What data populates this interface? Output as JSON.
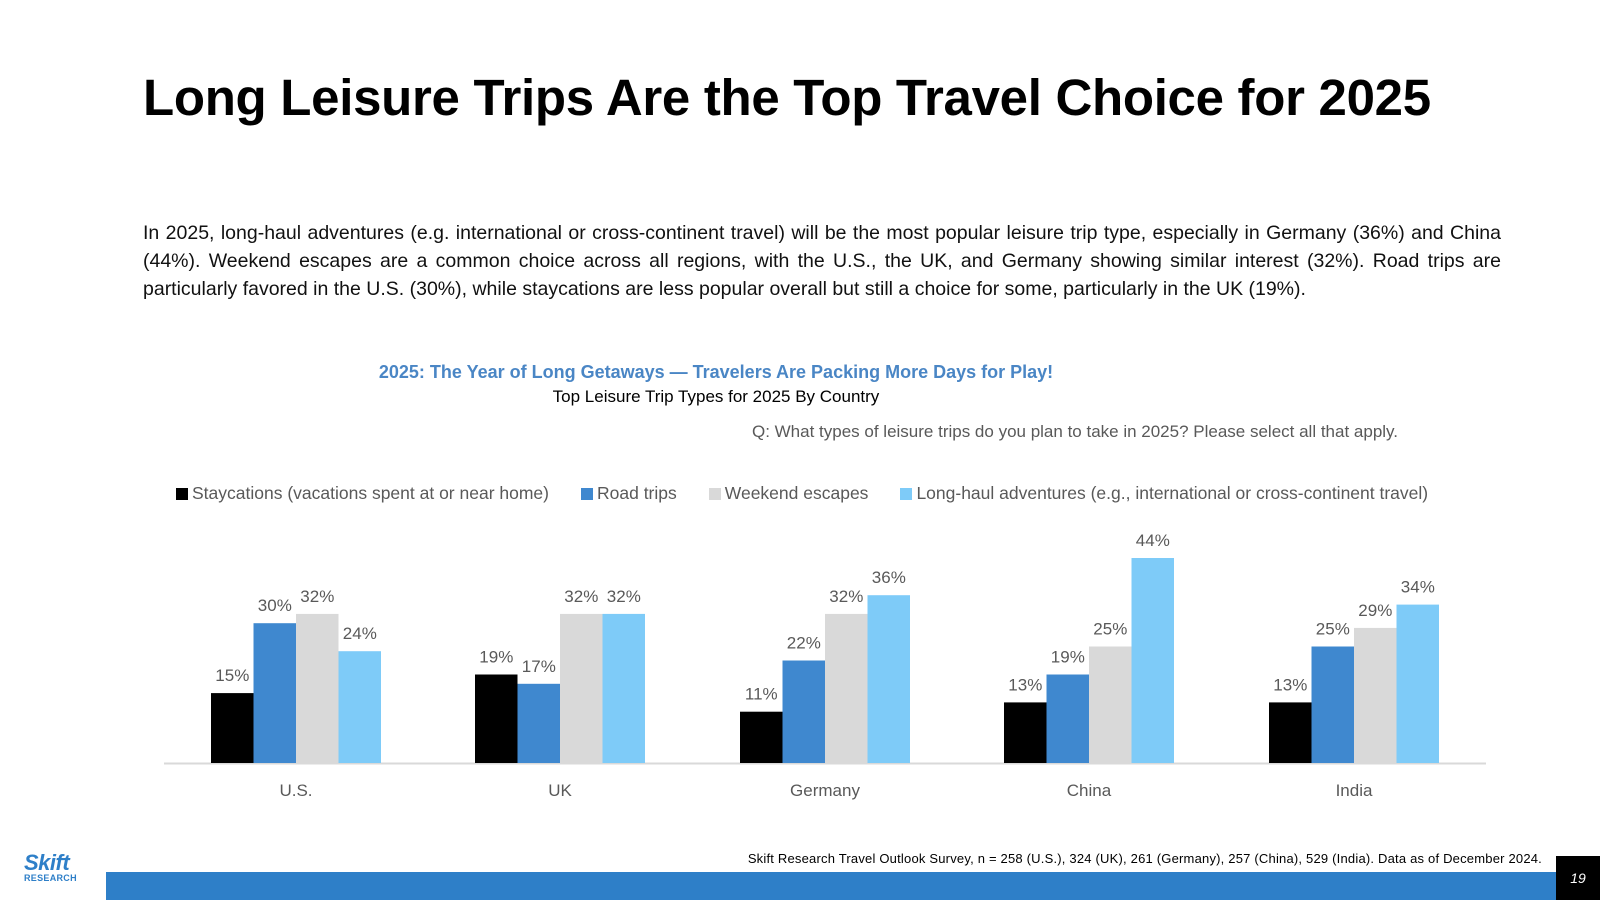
{
  "slide": {
    "title": "Long Leisure Trips Are the Top Travel Choice for 2025",
    "intro": "In 2025, long-haul adventures (e.g. international or cross-continent travel) will be the most popular leisure trip type, especially in Germany (36%) and China (44%). Weekend escapes are a common choice across all regions, with the U.S., the UK, and Germany showing similar interest (32%). Road trips are particularly favored in the U.S. (30%), while staycations are less popular overall but still a choice for some, particularly in the UK (19%).",
    "source": "Skift Research Travel Outlook Survey, n = 258 (U.S.), 324 (UK), 261 (Germany), 257 (China), 529 (India). Data as of December  2024.",
    "page_number": "19",
    "logo": {
      "word": "Skift",
      "sub": "RESEARCH"
    }
  },
  "chart_data": {
    "type": "bar",
    "title": "2025: The Year of Long Getaways — Travelers Are Packing More Days for Play!",
    "subtitle": "Top Leisure Trip Types for 2025 By Country",
    "question": "Q: What types of leisure trips do you plan to take in 2025? Please select all that apply.",
    "categories": [
      "U.S.",
      "UK",
      "Germany",
      "China",
      "India"
    ],
    "series": [
      {
        "name": "Staycations (vacations spent at or near home)",
        "values": [
          15,
          19,
          11,
          13,
          13
        ],
        "color": "#000000"
      },
      {
        "name": "Road trips",
        "values": [
          30,
          17,
          22,
          19,
          25
        ],
        "color": "#3f88cf"
      },
      {
        "name": "Weekend escapes",
        "values": [
          32,
          32,
          32,
          25,
          29
        ],
        "color": "#d9d9d9"
      },
      {
        "name": "Long-haul adventures (e.g., international or cross-continent travel)",
        "values": [
          24,
          32,
          36,
          44,
          34
        ],
        "color": "#7ecbf8"
      }
    ],
    "value_suffix": "%",
    "ylim": [
      0,
      44
    ],
    "grid": false,
    "legend_position": "top",
    "label_color": "#595959",
    "axis_color": "#d9d9d9"
  }
}
